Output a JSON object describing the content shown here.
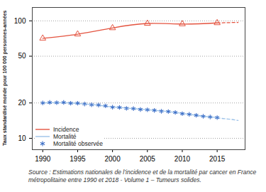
{
  "chart_data": {
    "type": "line",
    "y_label": "Taux standardisé monde pour 100 000 personnes-années",
    "caption": "Source : Estimations nationales de l’incidence et de la mortalité par cancer en France métropolitaine entre 1990 et 2018 - Volume 1 – Tumeurs solides.",
    "xlim": [
      1988.5,
      2019
    ],
    "xticks": [
      1990,
      1995,
      2000,
      2005,
      2010,
      2015
    ],
    "ylim": [
      8,
      130
    ],
    "yticks": [
      10,
      20,
      50,
      100
    ],
    "log": "y",
    "grid": true,
    "legend": "bottom-left",
    "series": [
      {
        "name": "Incidence",
        "color": "#e4533f",
        "type": "line",
        "marker": "triangle",
        "line_style": "solid",
        "x": [
          1990,
          1995,
          2000,
          2005,
          2010,
          2015,
          2018
        ],
        "values": [
          71,
          77,
          87,
          95,
          94,
          96,
          97
        ]
      },
      {
        "name": "Mortalité",
        "color": "#9cc2e8",
        "type": "line",
        "line_style": "solid",
        "x": [
          1990,
          1991,
          1992,
          1993,
          1994,
          1995,
          1996,
          1997,
          1998,
          1999,
          2000,
          2001,
          2002,
          2003,
          2004,
          2005,
          2006,
          2007,
          2008,
          2009,
          2010,
          2011,
          2012,
          2013,
          2014,
          2015,
          2016,
          2017,
          2018
        ],
        "values": [
          20.0,
          20.1,
          20.1,
          20.1,
          20.0,
          19.8,
          19.6,
          19.4,
          19.1,
          18.8,
          18.5,
          18.3,
          18.1,
          17.9,
          17.7,
          17.5,
          17.3,
          17.1,
          16.9,
          16.6,
          16.3,
          16.0,
          15.7,
          15.4,
          15.2,
          15.0,
          14.7,
          14.5,
          14.2
        ]
      },
      {
        "name": "Mortalité observée",
        "color": "#3d6fc7",
        "type": "scatter",
        "marker": "asterisk",
        "x": [
          1990,
          1991,
          1992,
          1993,
          1994,
          1995,
          1996,
          1997,
          1998,
          1999,
          2000,
          2001,
          2002,
          2003,
          2004,
          2005,
          2006,
          2007,
          2008,
          2009,
          2010,
          2011,
          2012,
          2013,
          2014,
          2015
        ],
        "values": [
          20.0,
          20.2,
          20.1,
          20.2,
          19.9,
          19.9,
          19.6,
          19.3,
          19.2,
          18.9,
          18.4,
          18.3,
          18.0,
          17.9,
          17.6,
          17.5,
          17.3,
          17.0,
          16.9,
          16.6,
          16.2,
          16.0,
          15.7,
          15.4,
          15.2,
          15.0
        ]
      }
    ]
  }
}
